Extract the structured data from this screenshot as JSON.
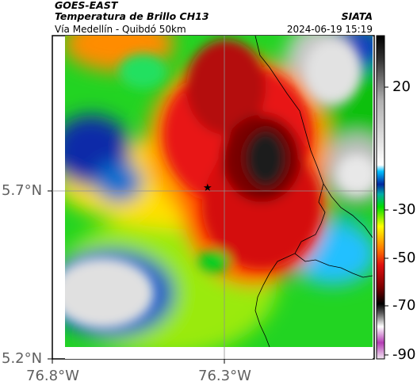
{
  "header": {
    "source": "GOES-EAST",
    "product": "Temperatura de Brillo CH13",
    "route": "Vía Medellín - Quibdó 50km",
    "organization": "SIATA",
    "timestamp": "2024-06-19 15:19"
  },
  "axes": {
    "lat_labels": [
      "5.7°N",
      "5.2°N"
    ],
    "lon_labels": [
      "76.8°W",
      "76.3°W"
    ]
  },
  "colorbar": {
    "ticks": [
      "20",
      "-30",
      "-50",
      "-70",
      "-90"
    ],
    "stops": [
      "#f3e8f3",
      "#b43cb4",
      "#ffffff",
      "#606060",
      "#000000",
      "#7a0000",
      "#e01010",
      "#ff7a00",
      "#ffff00",
      "#00dd00",
      "#00aaaa",
      "#0028a0",
      "#00bfff",
      "#b0b0b0",
      "#303030",
      "#000000"
    ]
  },
  "marker": {
    "symbol": "★"
  }
}
